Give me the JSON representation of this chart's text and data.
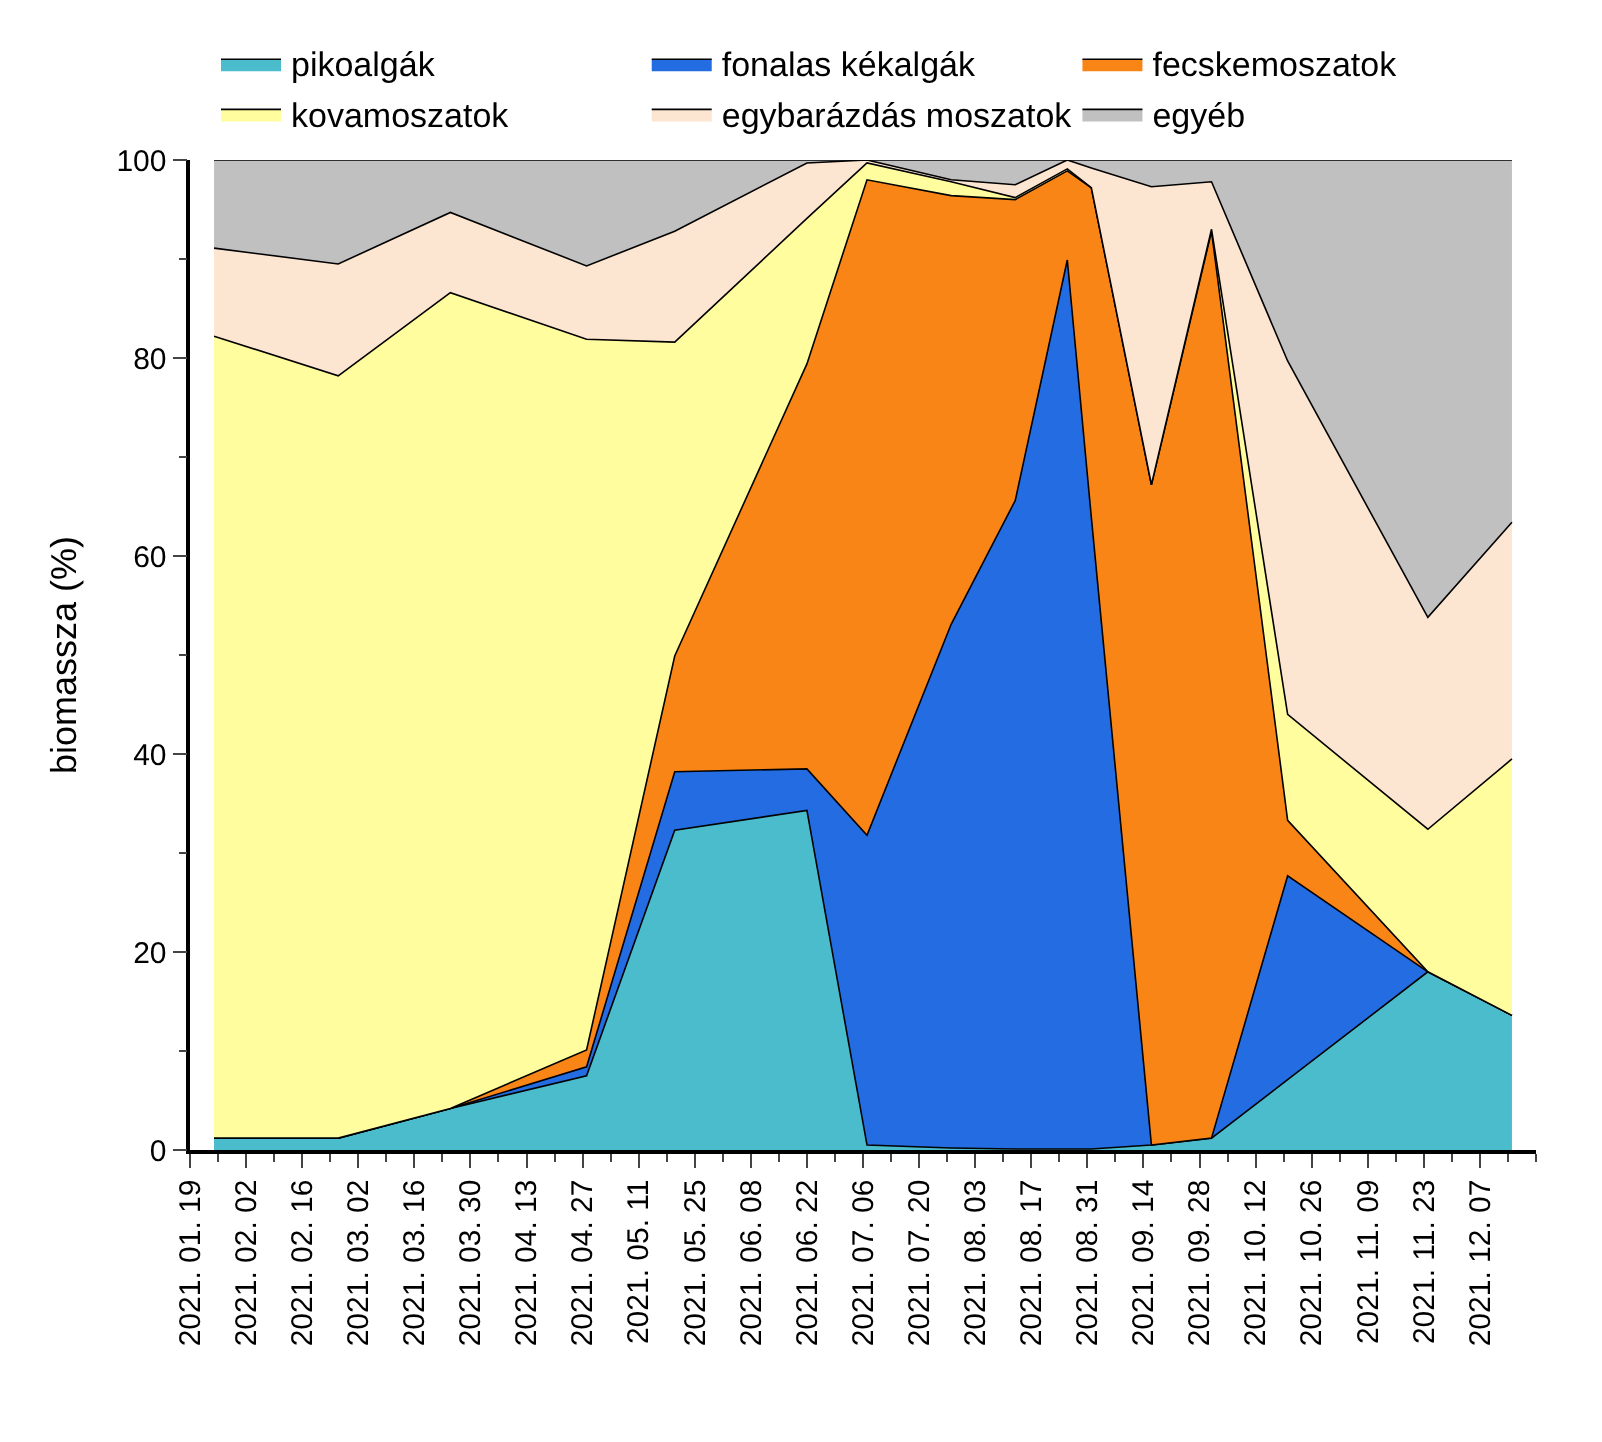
{
  "chart_data": {
    "type": "area",
    "stacked": true,
    "ylabel": "biomassza (%)",
    "x": [
      "2021-01-25",
      "2021-02-25",
      "2021-03-25",
      "2021-04-28",
      "2021-05-20",
      "2021-06-22",
      "2021-07-07",
      "2021-07-28",
      "2021-08-13",
      "2021-08-26",
      "2021-09-01",
      "2021-09-16",
      "2021-10-01",
      "2021-10-20",
      "2021-11-24",
      "2021-12-15"
    ],
    "series": [
      {
        "name": "pikoalgák",
        "color": "#4bbccc",
        "values": [
          1.2,
          1.2,
          4.2,
          7.5,
          32.3,
          34.3,
          0.5,
          0.2,
          0.1,
          0.1,
          0.1,
          0.5,
          1.2,
          7.1,
          18.0,
          13.6
        ]
      },
      {
        "name": "fonalas kékalgák",
        "color": "#236ce2",
        "values": [
          0,
          0,
          0,
          0.9,
          5.9,
          4.2,
          31.3,
          52.9,
          65.5,
          89.8,
          63.8,
          0,
          0,
          20.6,
          0,
          0
        ]
      },
      {
        "name": "fecskemoszatok",
        "color": "#f98517",
        "values": [
          0,
          0,
          0,
          1.7,
          11.7,
          40.9,
          66.2,
          43.3,
          30.4,
          9.0,
          33.3,
          66.7,
          91.6,
          5.6,
          0,
          0
        ]
      },
      {
        "name": "kovamoszatok",
        "color": "#fffd9e",
        "values": [
          81.0,
          77.0,
          82.4,
          71.8,
          31.7,
          14.7,
          1.7,
          1.4,
          0.2,
          0.2,
          0,
          0,
          0.2,
          10.7,
          14.4,
          25.9
        ]
      },
      {
        "name": "egybarázdás moszatok",
        "color": "#fde6d1",
        "values": [
          8.9,
          11.3,
          8.1,
          7.4,
          11.2,
          5.6,
          0.3,
          0.2,
          1.3,
          0.9,
          2.0,
          30.1,
          4.8,
          35.7,
          21.4,
          23.9
        ]
      },
      {
        "name": "egyéb",
        "color": "#c0c0c0",
        "values": [
          8.9,
          10.5,
          5.3,
          10.7,
          7.2,
          0.3,
          0,
          2.0,
          2.5,
          0,
          0.8,
          2.7,
          2.2,
          20.3,
          46.2,
          36.6
        ]
      }
    ],
    "xlim": [
      "2021-01-19",
      "2021-12-21"
    ],
    "xticks": [
      {
        "value": "2021-01-19",
        "label": "2021. 01. 19"
      },
      {
        "value": "2021-02-02",
        "label": "2021. 02. 02"
      },
      {
        "value": "2021-02-16",
        "label": "2021. 02. 16"
      },
      {
        "value": "2021-03-02",
        "label": "2021. 03. 02"
      },
      {
        "value": "2021-03-16",
        "label": "2021. 03. 16"
      },
      {
        "value": "2021-03-30",
        "label": "2021. 03. 30"
      },
      {
        "value": "2021-04-13",
        "label": "2021. 04. 13"
      },
      {
        "value": "2021-04-27",
        "label": "2021. 04. 27"
      },
      {
        "value": "2021-05-11",
        "label": "2021. 05. 11"
      },
      {
        "value": "2021-05-25",
        "label": "2021. 05. 25"
      },
      {
        "value": "2021-06-08",
        "label": "2021. 06. 08"
      },
      {
        "value": "2021-06-22",
        "label": "2021. 06. 22"
      },
      {
        "value": "2021-07-06",
        "label": "2021. 07. 06"
      },
      {
        "value": "2021-07-20",
        "label": "2021. 07. 20"
      },
      {
        "value": "2021-08-03",
        "label": "2021. 08. 03"
      },
      {
        "value": "2021-08-17",
        "label": "2021. 08. 17"
      },
      {
        "value": "2021-08-31",
        "label": "2021. 08. 31"
      },
      {
        "value": "2021-09-14",
        "label": "2021. 09. 14"
      },
      {
        "value": "2021-09-28",
        "label": "2021. 09. 28"
      },
      {
        "value": "2021-10-12",
        "label": "2021. 10. 12"
      },
      {
        "value": "2021-10-26",
        "label": "2021. 10. 26"
      },
      {
        "value": "2021-11-09",
        "label": "2021. 11. 09"
      },
      {
        "value": "2021-11-23",
        "label": "2021. 11. 23"
      },
      {
        "value": "2021-12-07",
        "label": "2021. 12. 07"
      }
    ],
    "ylim": [
      0,
      100
    ],
    "yticks": [
      0,
      20,
      40,
      60,
      80,
      100
    ],
    "legend": "top"
  }
}
